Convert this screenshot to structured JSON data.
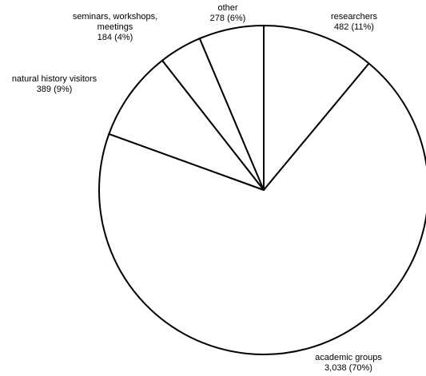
{
  "chart_data": {
    "type": "pie",
    "title": "",
    "start": "12 o'clock",
    "direction": "clockwise",
    "fill_color": "#ffffff",
    "edge_color": "#000000",
    "slices": [
      {
        "category": "researchers",
        "value": 482,
        "value_text": "482",
        "percent_text": "(11%)",
        "label_lines": [
          "researchers"
        ]
      },
      {
        "category": "academic groups",
        "value": 3038,
        "value_text": "3,038",
        "percent_text": "(70%)",
        "label_lines": [
          "academic groups"
        ]
      },
      {
        "category": "natural history visitors",
        "value": 389,
        "value_text": "389",
        "percent_text": "(9%)",
        "label_lines": [
          "natural history visitors"
        ]
      },
      {
        "category": "seminars, workshops, meetings",
        "value": 184,
        "value_text": "184",
        "percent_text": "(4%)",
        "label_lines": [
          "seminars, workshops,",
          "meetings"
        ]
      },
      {
        "category": "other",
        "value": 278,
        "value_text": "278",
        "percent_text": "(6%)",
        "label_lines": [
          "other"
        ]
      }
    ]
  }
}
